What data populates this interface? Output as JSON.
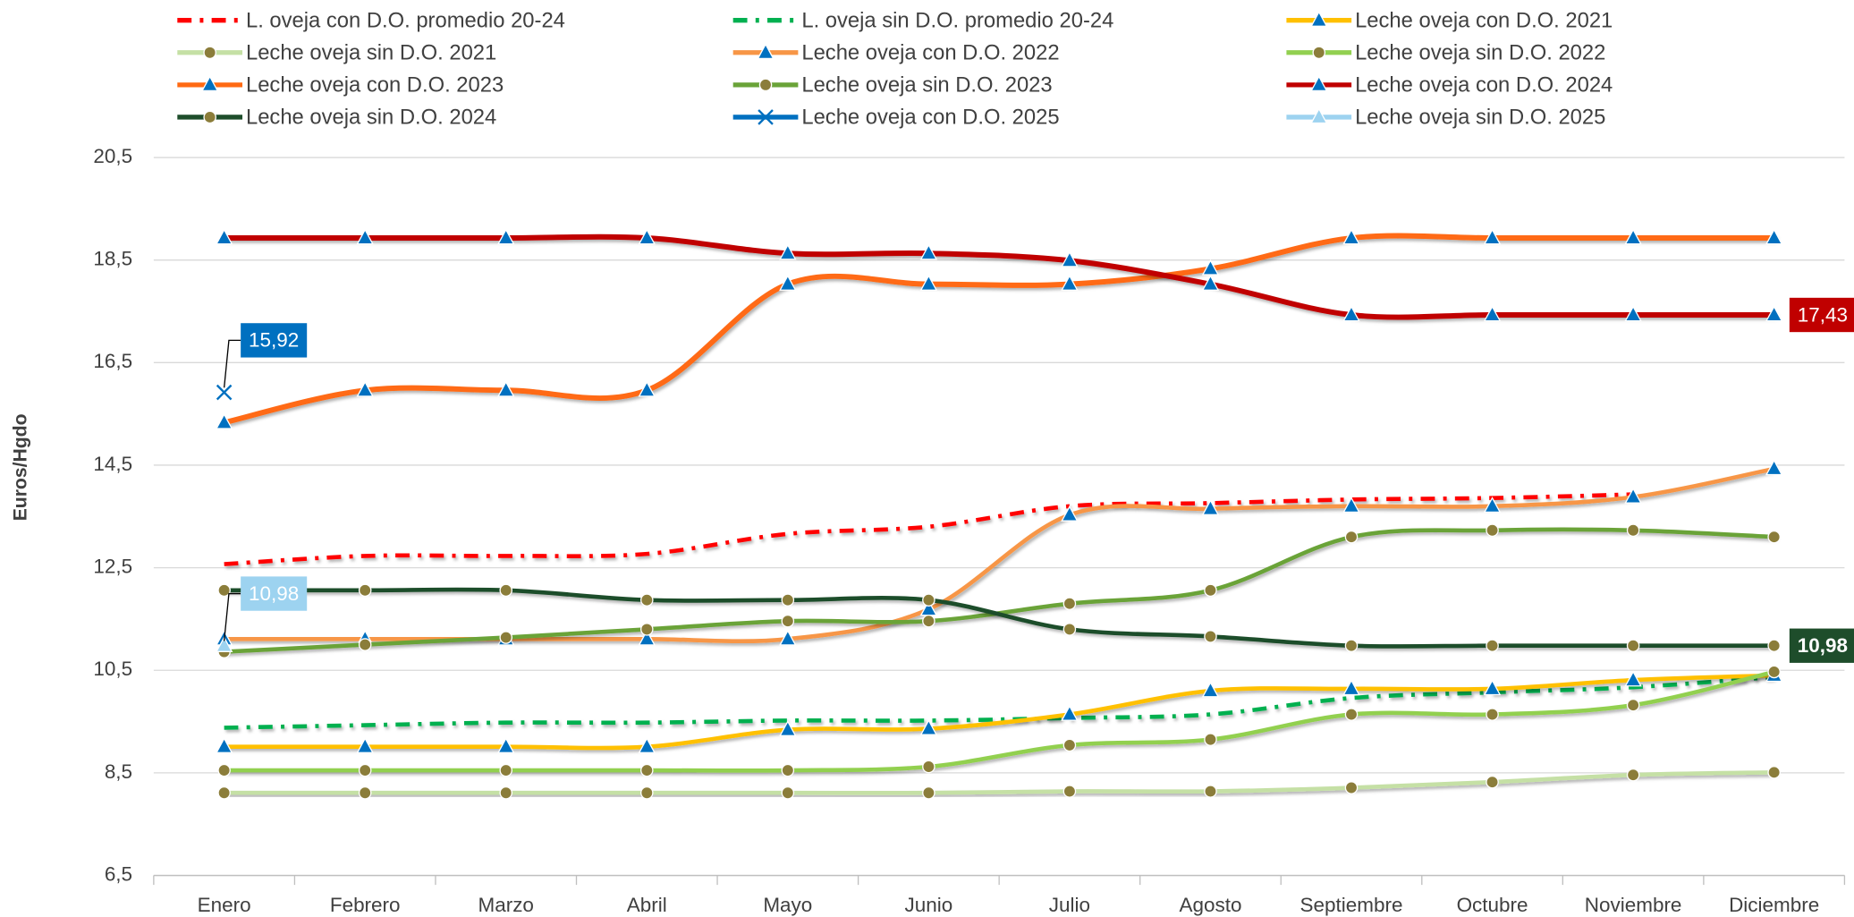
{
  "chart_data": {
    "type": "line",
    "y_label": "Euros/Hgdo",
    "categories": [
      "Enero",
      "Febrero",
      "Marzo",
      "Abril",
      "Mayo",
      "Junio",
      "Julio",
      "Agosto",
      "Septiembre",
      "Octubre",
      "Noviembre",
      "Diciembre"
    ],
    "ylim": [
      6.5,
      20.5
    ],
    "yticks": [
      {
        "value": 6.5,
        "label": "6,5"
      },
      {
        "value": 8.5,
        "label": "8,5"
      },
      {
        "value": 10.5,
        "label": "10,5"
      },
      {
        "value": 12.5,
        "label": "12,5"
      },
      {
        "value": 14.5,
        "label": "14,5"
      },
      {
        "value": 16.5,
        "label": "16,5"
      },
      {
        "value": 18.5,
        "label": "18,5"
      },
      {
        "value": 20.5,
        "label": "20,5"
      }
    ],
    "grid": true,
    "legend": "top",
    "series": [
      {
        "name": "L. oveja con D.O. promedio 20-24",
        "color": "#ff0000",
        "dash": "dashdot",
        "marker": null,
        "values": [
          12.57,
          12.73,
          12.73,
          12.77,
          13.16,
          13.3,
          13.7,
          13.76,
          13.83,
          13.86,
          13.93,
          null
        ]
      },
      {
        "name": "L. oveja sin D.O. promedio 20-24",
        "color": "#00b050",
        "dash": "dashdot",
        "marker": null,
        "values": [
          9.38,
          9.43,
          9.48,
          9.48,
          9.52,
          9.52,
          9.57,
          9.64,
          9.96,
          10.07,
          10.17,
          10.37
        ]
      },
      {
        "name": "Leche oveja con D.O. 2021",
        "color": "#ffc000",
        "marker": "triangle",
        "values": [
          9.01,
          9.01,
          9.01,
          9.01,
          9.34,
          9.36,
          9.64,
          10.1,
          10.14,
          10.14,
          10.31,
          10.4
        ]
      },
      {
        "name": "Leche oveja sin D.O. 2021",
        "color": "#c5e0a5",
        "marker": "circle",
        "values": [
          8.11,
          8.11,
          8.11,
          8.11,
          8.11,
          8.11,
          8.14,
          8.14,
          8.21,
          8.32,
          8.46,
          8.51
        ]
      },
      {
        "name": "Leche oveja con D.O. 2022",
        "color": "#f79646",
        "marker": "triangle",
        "values": [
          11.11,
          11.11,
          11.11,
          11.11,
          11.11,
          11.69,
          13.53,
          13.65,
          13.7,
          13.7,
          13.88,
          14.43
        ]
      },
      {
        "name": "Leche oveja sin D.O. 2022",
        "color": "#92d050",
        "marker": "circle",
        "values": [
          8.55,
          8.55,
          8.55,
          8.55,
          8.55,
          8.62,
          9.04,
          9.15,
          9.64,
          9.64,
          9.82,
          10.47
        ]
      },
      {
        "name": "Leche oveja con D.O. 2023",
        "color": "#ff6a13",
        "marker": "triangle",
        "values": [
          15.33,
          15.96,
          15.96,
          15.96,
          18.03,
          18.03,
          18.03,
          18.33,
          18.93,
          18.93,
          18.93,
          18.93
        ]
      },
      {
        "name": "Leche oveja sin D.O. 2023",
        "color": "#6aa338",
        "marker": "circle",
        "values": [
          10.86,
          11.0,
          11.14,
          11.3,
          11.46,
          11.46,
          11.8,
          12.06,
          13.1,
          13.23,
          13.23,
          13.1
        ]
      },
      {
        "name": "Leche oveja con D.O. 2024",
        "color": "#c00000",
        "marker": "triangle",
        "values": [
          18.93,
          18.93,
          18.93,
          18.93,
          18.63,
          18.63,
          18.49,
          18.03,
          17.43,
          17.43,
          17.43,
          17.43
        ],
        "value_labels": [
          null,
          null,
          null,
          null,
          null,
          null,
          null,
          null,
          null,
          null,
          null,
          "17,43"
        ]
      },
      {
        "name": "Leche oveja sin D.O. 2024",
        "color": "#1e4d2b",
        "marker": "circle",
        "values": [
          12.06,
          12.06,
          12.06,
          11.87,
          11.87,
          11.87,
          11.3,
          11.16,
          10.98,
          10.98,
          10.98,
          10.98
        ],
        "value_labels": [
          null,
          null,
          null,
          null,
          null,
          null,
          null,
          null,
          null,
          null,
          null,
          "10,98"
        ]
      },
      {
        "name": "Leche oveja con D.O. 2025",
        "color": "#0070c0",
        "marker": "x",
        "values": [
          15.92,
          null,
          null,
          null,
          null,
          null,
          null,
          null,
          null,
          null,
          null,
          null
        ],
        "value_labels": [
          "15,92",
          null,
          null,
          null,
          null,
          null,
          null,
          null,
          null,
          null,
          null,
          null
        ]
      },
      {
        "name": "Leche oveja sin D.O. 2025",
        "color": "#9dd3f0",
        "marker": "triangle",
        "values": [
          10.98,
          null,
          null,
          null,
          null,
          null,
          null,
          null,
          null,
          null,
          null,
          null
        ],
        "value_labels": [
          "10,98",
          null,
          null,
          null,
          null,
          null,
          null,
          null,
          null,
          null,
          null,
          null
        ]
      }
    ]
  }
}
